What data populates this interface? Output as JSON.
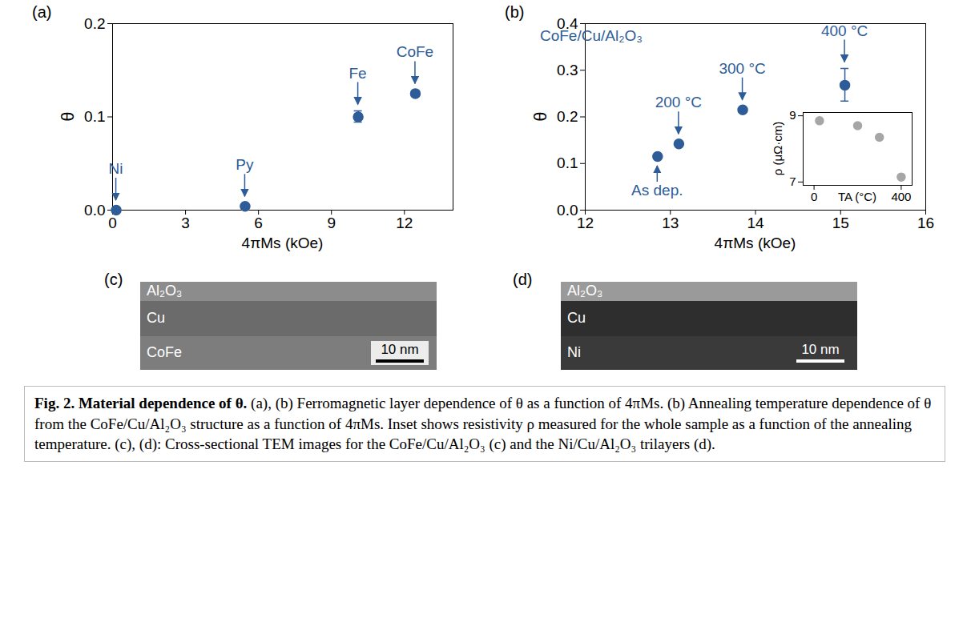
{
  "chart_data": [
    {
      "panel": "(a)",
      "type": "scatter",
      "x_label": "4πMs (kOe)",
      "y_label": "θ",
      "x": [
        0.15,
        5.45,
        10.1,
        12.45
      ],
      "values": [
        0.0,
        0.004,
        0.1,
        0.125
      ],
      "errors": [
        0,
        0,
        0.006,
        0
      ],
      "point_labels": [
        "Ni",
        "Py",
        "Fe",
        "CoFe"
      ],
      "color": "#2E5C98",
      "marker": "circle",
      "xlim": [
        0,
        14
      ],
      "xticks": [
        0,
        3,
        6,
        9,
        12
      ],
      "ylim": [
        0,
        0.2
      ],
      "yticks": [
        {
          "value": 0,
          "label": "0.0"
        },
        0.1,
        0.2
      ],
      "grid": false
    },
    {
      "panel": "(b)",
      "type": "scatter",
      "title": "CoFe/Cu/Al₂O₃",
      "x_label": "4πMs (kOe)",
      "y_label": "θ",
      "x": [
        12.85,
        13.1,
        13.85,
        15.05
      ],
      "values": [
        0.115,
        0.142,
        0.215,
        0.268
      ],
      "errors": [
        0,
        0,
        0,
        0.035
      ],
      "point_labels": [
        "As dep.",
        "200 °C",
        "300 °C",
        "400 °C"
      ],
      "color": "#2E5C98",
      "marker": "circle",
      "xlim": [
        12,
        16
      ],
      "xticks": [
        12,
        13,
        14,
        15,
        16
      ],
      "ylim": [
        0,
        0.4
      ],
      "yticks": [
        {
          "value": 0,
          "label": "0.0"
        },
        0.1,
        0.2,
        0.3,
        0.4
      ],
      "grid": false,
      "inset": {
        "type": "scatter",
        "x_label": "TA (°C)",
        "y_label": "ρ (μΩ·cm)",
        "x": [
          25,
          200,
          300,
          400
        ],
        "values": [
          8.85,
          8.7,
          8.35,
          7.15
        ],
        "color": "#A6A6A6",
        "marker": "circle",
        "xlim": [
          -50,
          450
        ],
        "xticks": [
          0,
          400
        ],
        "ylim": [
          6.9,
          9.1
        ],
        "yticks": [
          7,
          9
        ],
        "grid": false
      }
    }
  ],
  "images": [
    {
      "panel": "(c)",
      "layers": [
        "Al₂O₃",
        "Cu",
        "CoFe"
      ],
      "scale_bar": "10 nm"
    },
    {
      "panel": "(d)",
      "layers": [
        "Al₂O₃",
        "Cu",
        "Ni"
      ],
      "scale_bar": "10 nm"
    }
  ],
  "caption": {
    "title": "Fig. 2. Material dependence of θ.",
    "text": "(a), (b) Ferromagnetic layer dependence of θ as a function of 4πMs. (b) Annealing temperature dependence of θ from the CoFe/Cu/Al₂O₃ structure as a function of 4πMs. Inset shows resistivity ρ measured for the whole sample as a function of the annealing temperature. (c), (d): Cross-sectional TEM images for the CoFe/Cu/Al₂O₃ (c) and the Ni/Cu/Al₂O₃ trilayers (d)."
  }
}
